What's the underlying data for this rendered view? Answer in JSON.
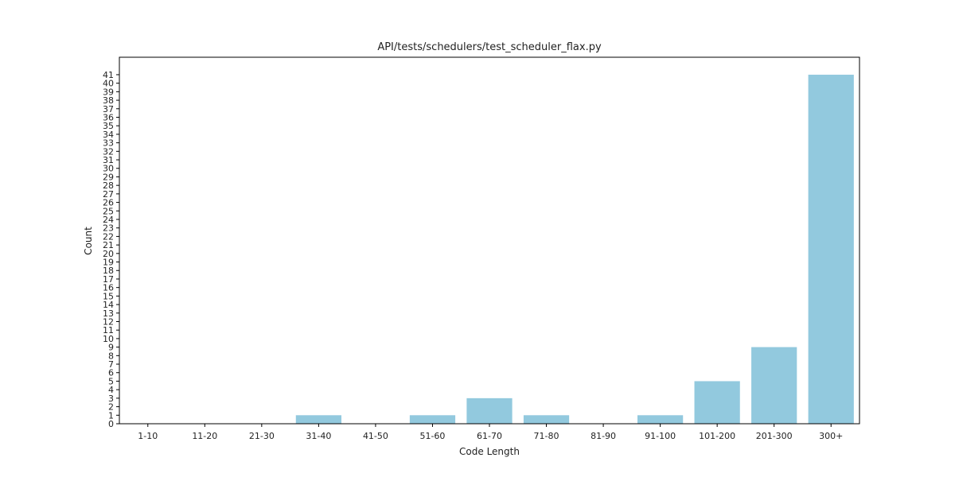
{
  "chart_data": {
    "type": "bar",
    "title": "API/tests/schedulers/test_scheduler_flax.py",
    "xlabel": "Code Length",
    "ylabel": "Count",
    "categories": [
      "1-10",
      "11-20",
      "21-30",
      "31-40",
      "41-50",
      "51-60",
      "61-70",
      "71-80",
      "81-90",
      "91-100",
      "101-200",
      "201-300",
      "300+"
    ],
    "values": [
      0,
      0,
      0,
      1,
      0,
      1,
      3,
      1,
      0,
      1,
      5,
      9,
      41
    ],
    "ylim": [
      0,
      43.05
    ],
    "yticks": [
      0,
      1,
      2,
      3,
      4,
      5,
      6,
      7,
      8,
      9,
      10,
      11,
      12,
      13,
      14,
      15,
      16,
      17,
      18,
      19,
      20,
      21,
      22,
      23,
      24,
      25,
      26,
      27,
      28,
      29,
      30,
      31,
      32,
      33,
      34,
      35,
      36,
      37,
      38,
      39,
      40,
      41
    ],
    "grid": false,
    "legend": "none",
    "bar_color": "#92c9de"
  }
}
